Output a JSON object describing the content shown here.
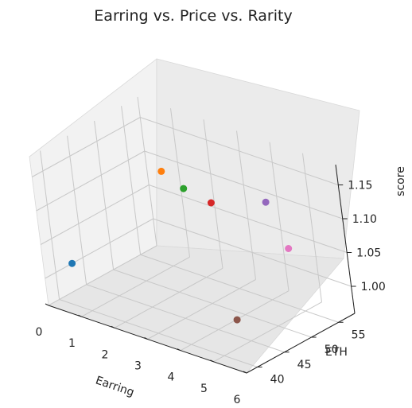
{
  "chart_data": {
    "type": "scatter",
    "projection": "3d",
    "title": "Earring vs. Price vs. Rarity",
    "xlabel": "Earring",
    "ylabel": "ETH",
    "zlabel": "score",
    "xlim": [
      0,
      6
    ],
    "ylim": [
      38,
      58
    ],
    "zlim": [
      0.96,
      1.18
    ],
    "x_ticks": [
      "0",
      "1",
      "2",
      "3",
      "4",
      "5",
      "6"
    ],
    "y_ticks": [
      "40",
      "45",
      "50",
      "55"
    ],
    "z_ticks": [
      "1.00",
      "1.05",
      "1.10",
      "1.15"
    ],
    "grid": true,
    "points": [
      {
        "x": 0,
        "y": 43,
        "z": 1.0,
        "color": "#1f77b4"
      },
      {
        "x": 1,
        "y": 55,
        "z": 1.1,
        "color": "#ff7f0e"
      },
      {
        "x": 2,
        "y": 53,
        "z": 1.1,
        "color": "#2ca02c"
      },
      {
        "x": 3,
        "y": 52,
        "z": 1.1,
        "color": "#d62728"
      },
      {
        "x": 4,
        "y": 56,
        "z": 1.1,
        "color": "#9467bd"
      },
      {
        "x": 5,
        "y": 43,
        "z": 1.0,
        "color": "#8c564b"
      },
      {
        "x": 6,
        "y": 48,
        "z": 1.1,
        "color": "#e377c2"
      }
    ]
  }
}
